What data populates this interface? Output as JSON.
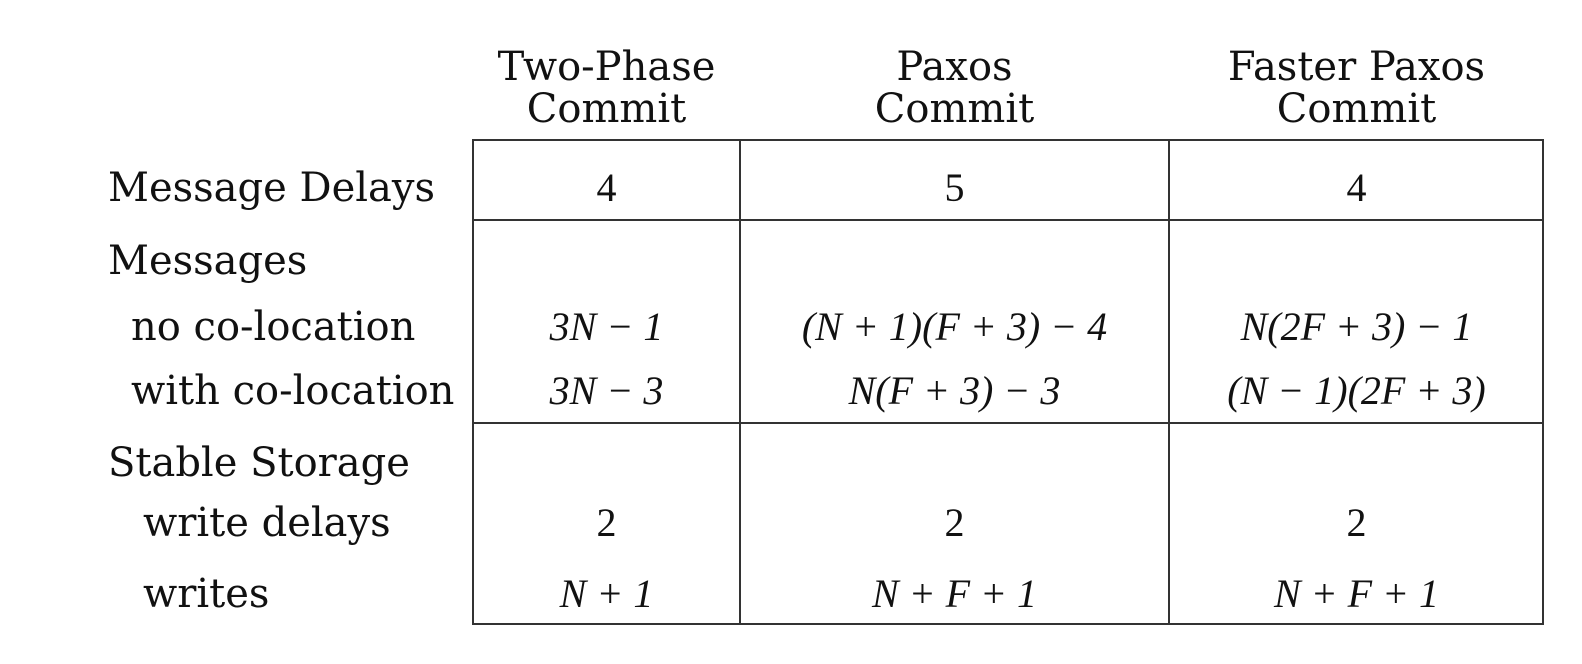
{
  "columns": [
    {
      "line1": "Two-Phase",
      "line2": "Commit"
    },
    {
      "line1": "Paxos",
      "line2": "Commit"
    },
    {
      "line1": "Faster Paxos",
      "line2": "Commit"
    }
  ],
  "rows": {
    "message_delays": {
      "label": "Message Delays",
      "values": [
        "4",
        "5",
        "4"
      ]
    },
    "messages": {
      "label": "Messages",
      "no_colocation": {
        "label": "no co-location",
        "values": [
          "3N − 1",
          "(N + 1)(F + 3) − 4",
          "N(2F + 3) − 1"
        ]
      },
      "with_colocation": {
        "label": "with co-location",
        "values": [
          "3N − 3",
          "N(F + 3) − 3",
          "(N − 1)(2F + 3)"
        ]
      }
    },
    "stable_storage": {
      "label": "Stable Storage",
      "write_delays": {
        "label": "write delays",
        "values": [
          "2",
          "2",
          "2"
        ]
      },
      "writes": {
        "label": "writes",
        "values": [
          "N + 1",
          "N + F + 1",
          "N + F + 1"
        ]
      }
    }
  }
}
